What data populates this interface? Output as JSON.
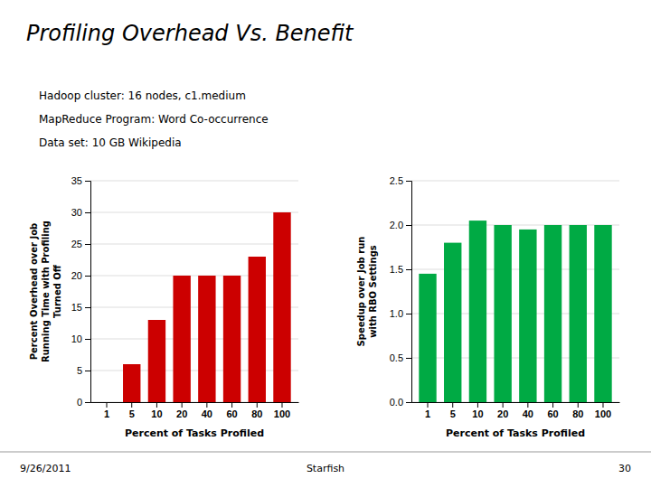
{
  "title": "Profiling Overhead Vs. Benefit",
  "subtitle": [
    "Hadoop cluster: 16 nodes, c1.medium",
    "MapReduce Program: Word Co-occurrence",
    "Data set: 10 GB Wikipedia"
  ],
  "annotations": [
    "9/26/2011",
    "Starfish",
    "30"
  ],
  "chart_data": [
    {
      "type": "bar",
      "categories": [
        "1",
        "5",
        "10",
        "20",
        "40",
        "60",
        "80",
        "100"
      ],
      "values": [
        0,
        6,
        13,
        20,
        20,
        20,
        23,
        30
      ],
      "color": "#cc0000",
      "ylim": [
        0,
        35
      ],
      "yticks": [
        0,
        5,
        10,
        15,
        20,
        25,
        30,
        35
      ],
      "grid": true,
      "xlabel": "Percent of Tasks Profiled",
      "ylabel": "Percent Overhead over Job\nRunning Time with Profiling\nTurned Off"
    },
    {
      "type": "bar",
      "categories": [
        "1",
        "5",
        "10",
        "20",
        "40",
        "60",
        "80",
        "100"
      ],
      "values": [
        1.45,
        1.8,
        2.05,
        2.0,
        1.95,
        2.0,
        2.0,
        2.0
      ],
      "color": "#00aa44",
      "ylim": [
        0.0,
        2.5
      ],
      "yticks": [
        {
          "value": 0.0,
          "label": "0.0"
        },
        0.5,
        {
          "value": 1.0,
          "label": "1.0"
        },
        1.5,
        {
          "value": 2.0,
          "label": "2.0"
        },
        2.5
      ],
      "grid": true,
      "xlabel": "Percent of Tasks Profiled",
      "ylabel": "Speedup over Job run\nwith RBO Settings"
    }
  ]
}
